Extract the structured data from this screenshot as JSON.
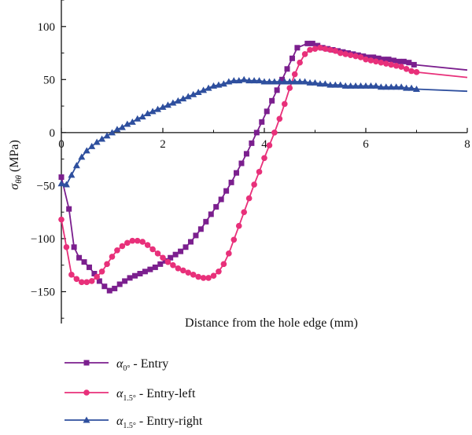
{
  "chart_data": {
    "type": "line",
    "xlabel": "Distance from the hole edge (mm)",
    "ylabel": "σθθ (MPa)",
    "xlim": [
      0,
      8
    ],
    "ylim": [
      -180,
      125
    ],
    "xticks": [
      0,
      2,
      4,
      6,
      8
    ],
    "yticks": [
      100,
      50,
      0,
      -50,
      -100,
      -150
    ],
    "xtick_labels": [
      "0",
      "2",
      "4",
      "6",
      "8"
    ],
    "ytick_labels": [
      "100",
      "50",
      "0",
      "−50",
      "−100",
      "−150"
    ],
    "grid": false,
    "legend_position": "bottom-left below plot",
    "series": [
      {
        "name": "α0° - Entry",
        "legend_symbol": "α",
        "legend_sub": "0°",
        "legend_suffix": " - Entry",
        "color": "#7b1f8e",
        "marker": "square",
        "points": [
          [
            0,
            -42
          ],
          [
            0.15,
            -72
          ],
          [
            0.25,
            -108
          ],
          [
            0.35,
            -118
          ],
          [
            0.45,
            -122
          ],
          [
            0.55,
            -127
          ],
          [
            0.65,
            -133
          ],
          [
            0.75,
            -140
          ],
          [
            0.85,
            -145
          ],
          [
            0.95,
            -149
          ],
          [
            1.05,
            -147
          ],
          [
            1.15,
            -143
          ],
          [
            1.25,
            -140
          ],
          [
            1.35,
            -137
          ],
          [
            1.45,
            -135
          ],
          [
            1.55,
            -133
          ],
          [
            1.65,
            -131
          ],
          [
            1.75,
            -129
          ],
          [
            1.85,
            -127
          ],
          [
            1.95,
            -124
          ],
          [
            2.05,
            -121
          ],
          [
            2.15,
            -118
          ],
          [
            2.25,
            -115
          ],
          [
            2.35,
            -112
          ],
          [
            2.45,
            -108
          ],
          [
            2.55,
            -103
          ],
          [
            2.65,
            -97
          ],
          [
            2.75,
            -91
          ],
          [
            2.85,
            -84
          ],
          [
            2.95,
            -77
          ],
          [
            3.05,
            -70
          ],
          [
            3.15,
            -63
          ],
          [
            3.25,
            -55
          ],
          [
            3.35,
            -47
          ],
          [
            3.45,
            -38
          ],
          [
            3.55,
            -29
          ],
          [
            3.65,
            -20
          ],
          [
            3.75,
            -10
          ],
          [
            3.85,
            0
          ],
          [
            3.95,
            10
          ],
          [
            4.05,
            20
          ],
          [
            4.15,
            30
          ],
          [
            4.25,
            40
          ],
          [
            4.35,
            50
          ],
          [
            4.45,
            60
          ],
          [
            4.55,
            70
          ],
          [
            4.65,
            80
          ],
          [
            4.85,
            84
          ],
          [
            4.95,
            84
          ],
          [
            5.05,
            82
          ],
          [
            5.15,
            80
          ],
          [
            5.25,
            79
          ],
          [
            5.35,
            78
          ],
          [
            5.45,
            77
          ],
          [
            5.55,
            76
          ],
          [
            5.65,
            75
          ],
          [
            5.75,
            74
          ],
          [
            5.85,
            73
          ],
          [
            5.95,
            72
          ],
          [
            6.05,
            71
          ],
          [
            6.15,
            71
          ],
          [
            6.25,
            70
          ],
          [
            6.35,
            69
          ],
          [
            6.45,
            69
          ],
          [
            6.55,
            68
          ],
          [
            6.65,
            67
          ],
          [
            6.75,
            67
          ],
          [
            6.85,
            66
          ],
          [
            6.95,
            64
          ],
          [
            8.0,
            59
          ]
        ]
      },
      {
        "name": "α1.5° - Entry-left",
        "legend_symbol": "α",
        "legend_sub": "1.5°",
        "legend_suffix": " - Entry-left",
        "color": "#e8307a",
        "marker": "circle",
        "points": [
          [
            0,
            -82
          ],
          [
            0.1,
            -108
          ],
          [
            0.2,
            -134
          ],
          [
            0.3,
            -138
          ],
          [
            0.4,
            -141
          ],
          [
            0.5,
            -141
          ],
          [
            0.6,
            -140
          ],
          [
            0.7,
            -136
          ],
          [
            0.8,
            -131
          ],
          [
            0.9,
            -124
          ],
          [
            1.0,
            -117
          ],
          [
            1.1,
            -111
          ],
          [
            1.2,
            -107
          ],
          [
            1.3,
            -104
          ],
          [
            1.4,
            -102
          ],
          [
            1.5,
            -102
          ],
          [
            1.6,
            -103
          ],
          [
            1.7,
            -106
          ],
          [
            1.8,
            -110
          ],
          [
            1.9,
            -114
          ],
          [
            2.0,
            -118
          ],
          [
            2.1,
            -122
          ],
          [
            2.2,
            -125
          ],
          [
            2.3,
            -128
          ],
          [
            2.4,
            -130
          ],
          [
            2.5,
            -132
          ],
          [
            2.6,
            -134
          ],
          [
            2.7,
            -136
          ],
          [
            2.8,
            -137
          ],
          [
            2.9,
            -137
          ],
          [
            3.0,
            -135
          ],
          [
            3.1,
            -131
          ],
          [
            3.2,
            -124
          ],
          [
            3.3,
            -114
          ],
          [
            3.4,
            -101
          ],
          [
            3.5,
            -88
          ],
          [
            3.6,
            -75
          ],
          [
            3.7,
            -62
          ],
          [
            3.8,
            -49
          ],
          [
            3.9,
            -37
          ],
          [
            4.0,
            -24
          ],
          [
            4.1,
            -12
          ],
          [
            4.2,
            0
          ],
          [
            4.3,
            13
          ],
          [
            4.4,
            27
          ],
          [
            4.5,
            42
          ],
          [
            4.6,
            55
          ],
          [
            4.7,
            66
          ],
          [
            4.8,
            74
          ],
          [
            4.9,
            78
          ],
          [
            5.0,
            79
          ],
          [
            5.1,
            80
          ],
          [
            5.2,
            79
          ],
          [
            5.3,
            78
          ],
          [
            5.4,
            77
          ],
          [
            5.5,
            75
          ],
          [
            5.6,
            74
          ],
          [
            5.7,
            73
          ],
          [
            5.8,
            72
          ],
          [
            5.9,
            71
          ],
          [
            6.0,
            69
          ],
          [
            6.1,
            68
          ],
          [
            6.2,
            67
          ],
          [
            6.3,
            66
          ],
          [
            6.4,
            65
          ],
          [
            6.5,
            64
          ],
          [
            6.6,
            63
          ],
          [
            6.7,
            62
          ],
          [
            6.8,
            60
          ],
          [
            6.9,
            58
          ],
          [
            7.0,
            57
          ],
          [
            8.0,
            52
          ]
        ]
      },
      {
        "name": "α1.5° - Entry-right",
        "legend_symbol": "α",
        "legend_sub": "1.5°",
        "legend_suffix": " - Entry-right",
        "color": "#2e4f9e",
        "marker": "triangle",
        "points": [
          [
            0,
            -48
          ],
          [
            0.1,
            -49
          ],
          [
            0.2,
            -40
          ],
          [
            0.3,
            -31
          ],
          [
            0.4,
            -23
          ],
          [
            0.5,
            -17
          ],
          [
            0.6,
            -13
          ],
          [
            0.7,
            -9
          ],
          [
            0.8,
            -6
          ],
          [
            0.9,
            -3
          ],
          [
            1.0,
            0
          ],
          [
            1.1,
            3
          ],
          [
            1.2,
            5
          ],
          [
            1.3,
            8
          ],
          [
            1.4,
            10
          ],
          [
            1.5,
            13
          ],
          [
            1.6,
            15
          ],
          [
            1.7,
            18
          ],
          [
            1.8,
            20
          ],
          [
            1.9,
            22
          ],
          [
            2.0,
            24
          ],
          [
            2.1,
            26
          ],
          [
            2.2,
            28
          ],
          [
            2.3,
            30
          ],
          [
            2.4,
            32
          ],
          [
            2.5,
            34
          ],
          [
            2.6,
            36
          ],
          [
            2.7,
            38
          ],
          [
            2.8,
            40
          ],
          [
            2.9,
            42
          ],
          [
            3.0,
            44
          ],
          [
            3.1,
            45
          ],
          [
            3.2,
            46
          ],
          [
            3.3,
            48
          ],
          [
            3.4,
            49
          ],
          [
            3.5,
            49
          ],
          [
            3.6,
            50
          ],
          [
            3.7,
            49
          ],
          [
            3.8,
            49
          ],
          [
            3.9,
            49
          ],
          [
            4.0,
            48
          ],
          [
            4.1,
            48
          ],
          [
            4.2,
            48
          ],
          [
            4.3,
            48
          ],
          [
            4.4,
            48
          ],
          [
            4.5,
            48
          ],
          [
            4.6,
            48
          ],
          [
            4.7,
            48
          ],
          [
            4.8,
            48
          ],
          [
            4.9,
            47
          ],
          [
            5.0,
            47
          ],
          [
            5.1,
            46
          ],
          [
            5.2,
            46
          ],
          [
            5.3,
            45
          ],
          [
            5.4,
            45
          ],
          [
            5.5,
            45
          ],
          [
            5.6,
            44
          ],
          [
            5.7,
            44
          ],
          [
            5.8,
            44
          ],
          [
            5.9,
            44
          ],
          [
            6.0,
            44
          ],
          [
            6.1,
            44
          ],
          [
            6.2,
            44
          ],
          [
            6.3,
            43
          ],
          [
            6.4,
            43
          ],
          [
            6.5,
            43
          ],
          [
            6.6,
            43
          ],
          [
            6.7,
            43
          ],
          [
            6.8,
            42
          ],
          [
            6.9,
            42
          ],
          [
            7.0,
            41
          ],
          [
            8.0,
            39
          ]
        ]
      }
    ]
  }
}
